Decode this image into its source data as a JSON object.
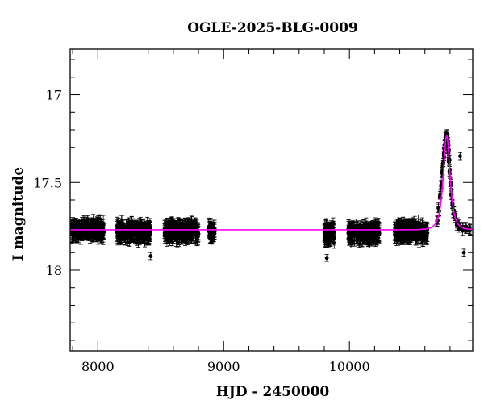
{
  "chart_data": {
    "type": "scatter",
    "title": "OGLE-2025-BLG-0009",
    "xlabel": "HJD - 2450000",
    "ylabel": "I magnitude",
    "xlim": [
      7780,
      10980
    ],
    "ylim": [
      18.46,
      16.74
    ],
    "y_inverted": true,
    "grid": false,
    "xticks": [
      8000,
      9000,
      10000
    ],
    "yticks": [
      17,
      17.5,
      18
    ],
    "xtick_labels": [
      "8000",
      "9000",
      "10000"
    ],
    "ytick_labels": [
      "17",
      "17.5",
      "18"
    ],
    "x_minor_step": 200,
    "y_minor_step": 0.1,
    "baseline_mag": 17.77,
    "colors": {
      "points": "#000000",
      "model": "#ff00ff"
    },
    "seasons": [
      {
        "x_start": 7790,
        "x_end": 8050,
        "mean_mag": 17.77,
        "scatter": 0.05
      },
      {
        "x_start": 8150,
        "x_end": 8420,
        "mean_mag": 17.78,
        "scatter": 0.05
      },
      {
        "x_start": 8530,
        "x_end": 8800,
        "mean_mag": 17.78,
        "scatter": 0.05
      },
      {
        "x_start": 8880,
        "x_end": 8930,
        "mean_mag": 17.78,
        "scatter": 0.04
      },
      {
        "x_start": 9800,
        "x_end": 9880,
        "mean_mag": 17.79,
        "scatter": 0.06
      },
      {
        "x_start": 9990,
        "x_end": 10240,
        "mean_mag": 17.79,
        "scatter": 0.05
      },
      {
        "x_start": 10360,
        "x_end": 10620,
        "mean_mag": 17.78,
        "scatter": 0.05
      }
    ],
    "event_points": [
      [
        10700,
        17.72
      ],
      [
        10712,
        17.65
      ],
      [
        10722,
        17.58
      ],
      [
        10730,
        17.52
      ],
      [
        10738,
        17.45
      ],
      [
        10745,
        17.4
      ],
      [
        10752,
        17.34
      ],
      [
        10757,
        17.3
      ],
      [
        10762,
        17.27
      ],
      [
        10766,
        17.25
      ],
      [
        10770,
        17.24
      ],
      [
        10774,
        17.24
      ],
      [
        10778,
        17.26
      ],
      [
        10782,
        17.28
      ],
      [
        10787,
        17.33
      ],
      [
        10792,
        17.38
      ],
      [
        10797,
        17.44
      ],
      [
        10803,
        17.5
      ],
      [
        10810,
        17.56
      ],
      [
        10818,
        17.62
      ],
      [
        10828,
        17.67
      ],
      [
        10840,
        17.7
      ],
      [
        10855,
        17.73
      ],
      [
        10875,
        17.75
      ],
      [
        10900,
        17.76
      ],
      [
        10930,
        17.76
      ],
      [
        10955,
        17.77
      ]
    ],
    "outliers": [
      [
        10880,
        17.35
      ],
      [
        8420,
        17.92
      ],
      [
        9820,
        17.93
      ],
      [
        10910,
        17.9
      ]
    ],
    "model": {
      "type": "paczynski",
      "t0": 10773,
      "peak_mag": 17.23,
      "baseline_mag": 17.77,
      "width": 38
    }
  }
}
